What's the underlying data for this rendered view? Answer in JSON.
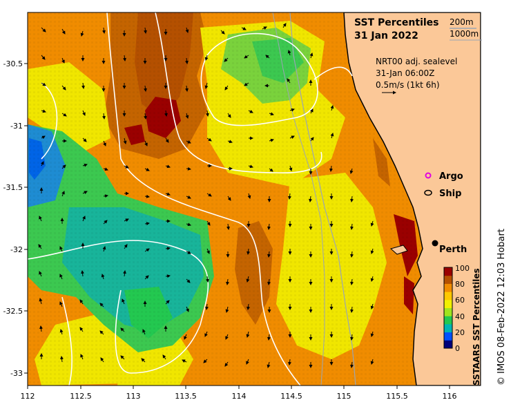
{
  "title": {
    "line1": "SST Percentiles",
    "line2": "31 Jan 2022"
  },
  "contours": [
    "200m",
    "1000m"
  ],
  "currents": {
    "source": "NRT00 adj. sealevel",
    "time": "31-Jan 06:00Z",
    "scale": "0.5m/s (1kt 6h)"
  },
  "legend": {
    "argo": "Argo",
    "ship": "Ship"
  },
  "place": "Perth",
  "colorbar": {
    "label": "SSTAARS SST Percentiles",
    "ticks": [
      "100",
      "80",
      "60",
      "40",
      "20",
      "0"
    ],
    "colors": [
      "#00007a",
      "#0050ff",
      "#00b4b4",
      "#23c850",
      "#a0e41e",
      "#f0f000",
      "#ffc800",
      "#f08c00",
      "#b45000",
      "#9a0000"
    ]
  },
  "axes": {
    "x_ticks": [
      "112",
      "112.5",
      "113",
      "113.5",
      "114",
      "114.5",
      "115",
      "115.5",
      "116"
    ],
    "y_ticks": [
      "-30.5",
      "-31",
      "-31.5",
      "-32",
      "-32.5",
      "-33"
    ],
    "x_range": [
      112,
      116.3
    ],
    "y_range": [
      -33.1,
      -30.1
    ]
  },
  "credit": "© IMOS 08-Feb-2022 12:03 Hobart",
  "colors": {
    "land": "#fbc898",
    "orange": "#f08c00",
    "dark_orange": "#c46400",
    "yellow": "#f0e600",
    "green": "#3cc850",
    "teal": "#18b49a",
    "red": "#9a0000"
  }
}
